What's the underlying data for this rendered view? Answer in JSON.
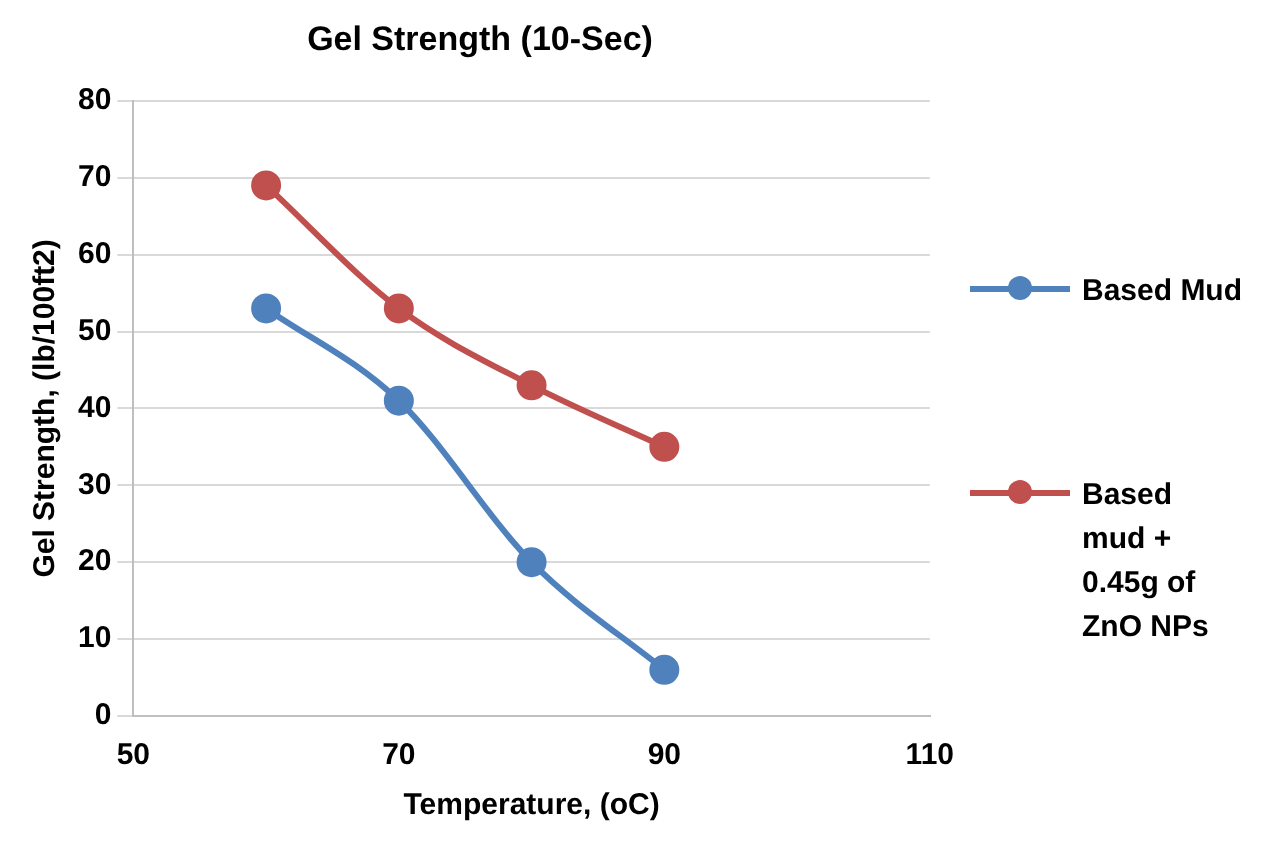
{
  "chart_data": {
    "type": "line",
    "title": "Gel Strength (10-Sec)",
    "xlabel": "Temperature, (oC)",
    "ylabel": "Gel Strength, (lb/100ft2)",
    "x": [
      60,
      70,
      80,
      90
    ],
    "series": [
      {
        "name": "Based Mud",
        "color": "#4f81bd",
        "values": [
          53,
          41,
          20,
          6
        ]
      },
      {
        "name": "Based mud + 0.45g of ZnO NPs",
        "color": "#c0504d",
        "values": [
          69,
          53,
          43,
          35
        ]
      }
    ],
    "xlim": [
      50,
      110
    ],
    "xticks": [
      50,
      70,
      90,
      110
    ],
    "ylim": [
      0,
      80
    ],
    "yticks": [
      0,
      10,
      20,
      30,
      40,
      50,
      60,
      70,
      80
    ],
    "grid": "y",
    "legend": "right",
    "marker": "circle",
    "line_style": "solid"
  }
}
